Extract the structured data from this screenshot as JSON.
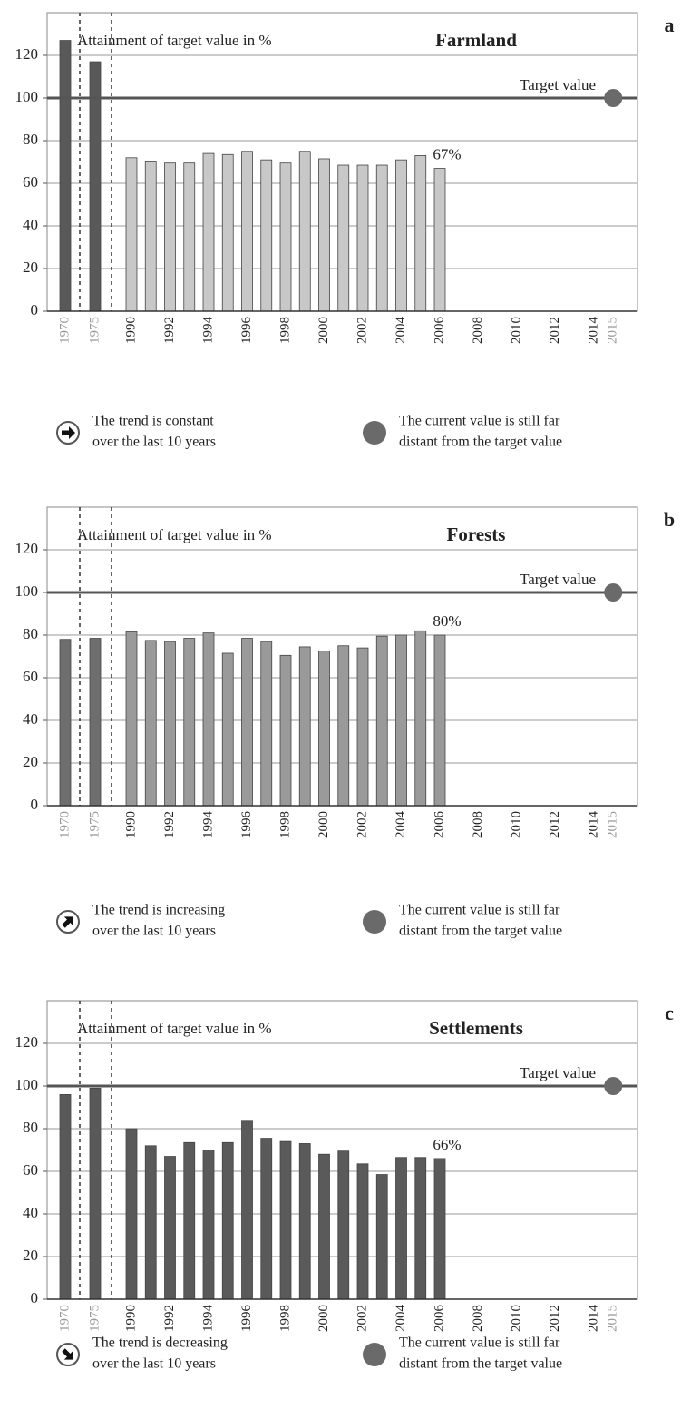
{
  "chart_data": [
    {
      "type": "bar",
      "panel": "a",
      "title": "Farmland",
      "axis_note": "Attainment of target value in %",
      "categories": [
        "1970",
        "1975",
        "1990",
        null,
        "1992",
        null,
        "1994",
        null,
        "1996",
        null,
        "1998",
        null,
        "2000",
        null,
        "2002",
        null,
        "2004",
        null,
        "2006",
        null,
        "2008",
        null,
        "2010",
        null,
        "2012",
        null,
        "2014",
        "2015"
      ],
      "values": [
        127,
        117,
        72,
        70,
        69.5,
        69.5,
        74,
        73.5,
        75,
        71,
        69.5,
        75,
        71.5,
        68.5,
        68.5,
        68.5,
        71,
        73,
        67,
        null,
        null,
        null,
        null,
        null,
        null,
        null,
        null,
        null
      ],
      "value_labels": [
        null,
        null,
        null,
        null,
        null,
        null,
        null,
        null,
        null,
        null,
        null,
        null,
        null,
        null,
        null,
        null,
        null,
        null,
        "67%",
        null,
        null,
        null,
        null,
        null,
        null,
        null,
        null,
        null
      ],
      "early_color": "#595959",
      "color": "#c8c8c8",
      "ylim": [
        0,
        140
      ],
      "yticks": [
        0,
        20,
        40,
        60,
        80,
        100,
        120
      ],
      "grid": true,
      "target": {
        "value": 100,
        "label": "Target value"
      },
      "trend": [
        "The trend is constant",
        "over the last 10 years"
      ],
      "status": [
        "The current value is still far",
        "distant from the target value"
      ],
      "status_color": "#6a6a6a"
    },
    {
      "type": "bar",
      "panel": "b",
      "title": "Forests",
      "axis_note": "Attainment of target value in %",
      "categories": [
        "1970",
        "1975",
        "1990",
        null,
        "1992",
        null,
        "1994",
        null,
        "1996",
        null,
        "1998",
        null,
        "2000",
        null,
        "2002",
        null,
        "2004",
        null,
        "2006",
        null,
        "2008",
        null,
        "2010",
        null,
        "2012",
        null,
        "2014",
        "2015"
      ],
      "values": [
        78,
        78.5,
        81.5,
        77.5,
        77,
        78.5,
        81,
        71.5,
        78.5,
        77,
        70.5,
        74.5,
        72.5,
        75,
        74,
        79.5,
        80,
        82,
        80,
        null,
        null,
        null,
        null,
        null,
        null,
        null,
        null,
        null
      ],
      "value_labels": [
        null,
        null,
        null,
        null,
        null,
        null,
        null,
        null,
        null,
        null,
        null,
        null,
        null,
        null,
        null,
        null,
        null,
        null,
        "80%",
        null,
        null,
        null,
        null,
        null,
        null,
        null,
        null,
        null
      ],
      "early_color": "#6e6e6e",
      "color": "#9a9a9a",
      "ylim": [
        0,
        140
      ],
      "yticks": [
        0,
        20,
        40,
        60,
        80,
        100,
        120
      ],
      "grid": true,
      "target": {
        "value": 100,
        "label": "Target value"
      },
      "trend": [
        "The trend is increasing",
        "over the last 10 years"
      ],
      "status": [
        "The current value is still far",
        "distant from the target value"
      ],
      "status_color": "#6a6a6a"
    },
    {
      "type": "bar",
      "panel": "c",
      "title": "Settlements",
      "axis_note": "Attainment of target value in %",
      "categories": [
        "1970",
        "1975",
        "1990",
        null,
        "1992",
        null,
        "1994",
        null,
        "1996",
        null,
        "1998",
        null,
        "2000",
        null,
        "2002",
        null,
        "2004",
        null,
        "2006",
        null,
        "2008",
        null,
        "2010",
        null,
        "2012",
        null,
        "2014",
        "2015"
      ],
      "values": [
        96,
        99,
        80,
        72,
        67,
        73.5,
        70,
        73.5,
        83.5,
        75.5,
        74,
        73,
        68,
        69.5,
        63.5,
        58.5,
        66.5,
        66.5,
        66,
        null,
        null,
        null,
        null,
        null,
        null,
        null,
        null,
        null
      ],
      "value_labels": [
        null,
        null,
        null,
        null,
        null,
        null,
        null,
        null,
        null,
        null,
        null,
        null,
        null,
        null,
        null,
        null,
        null,
        null,
        "66%",
        null,
        null,
        null,
        null,
        null,
        null,
        null,
        null,
        null
      ],
      "early_color": "#595959",
      "color": "#5a5a5a",
      "ylim": [
        0,
        140
      ],
      "yticks": [
        0,
        20,
        40,
        60,
        80,
        100,
        120
      ],
      "grid": true,
      "target": {
        "value": 100,
        "label": "Target value"
      },
      "trend": [
        "The trend is decreasing",
        "over the last 10 years"
      ],
      "status": [
        "The current value is still far",
        "distant from the target value"
      ],
      "status_color": "#6a6a6a"
    }
  ]
}
